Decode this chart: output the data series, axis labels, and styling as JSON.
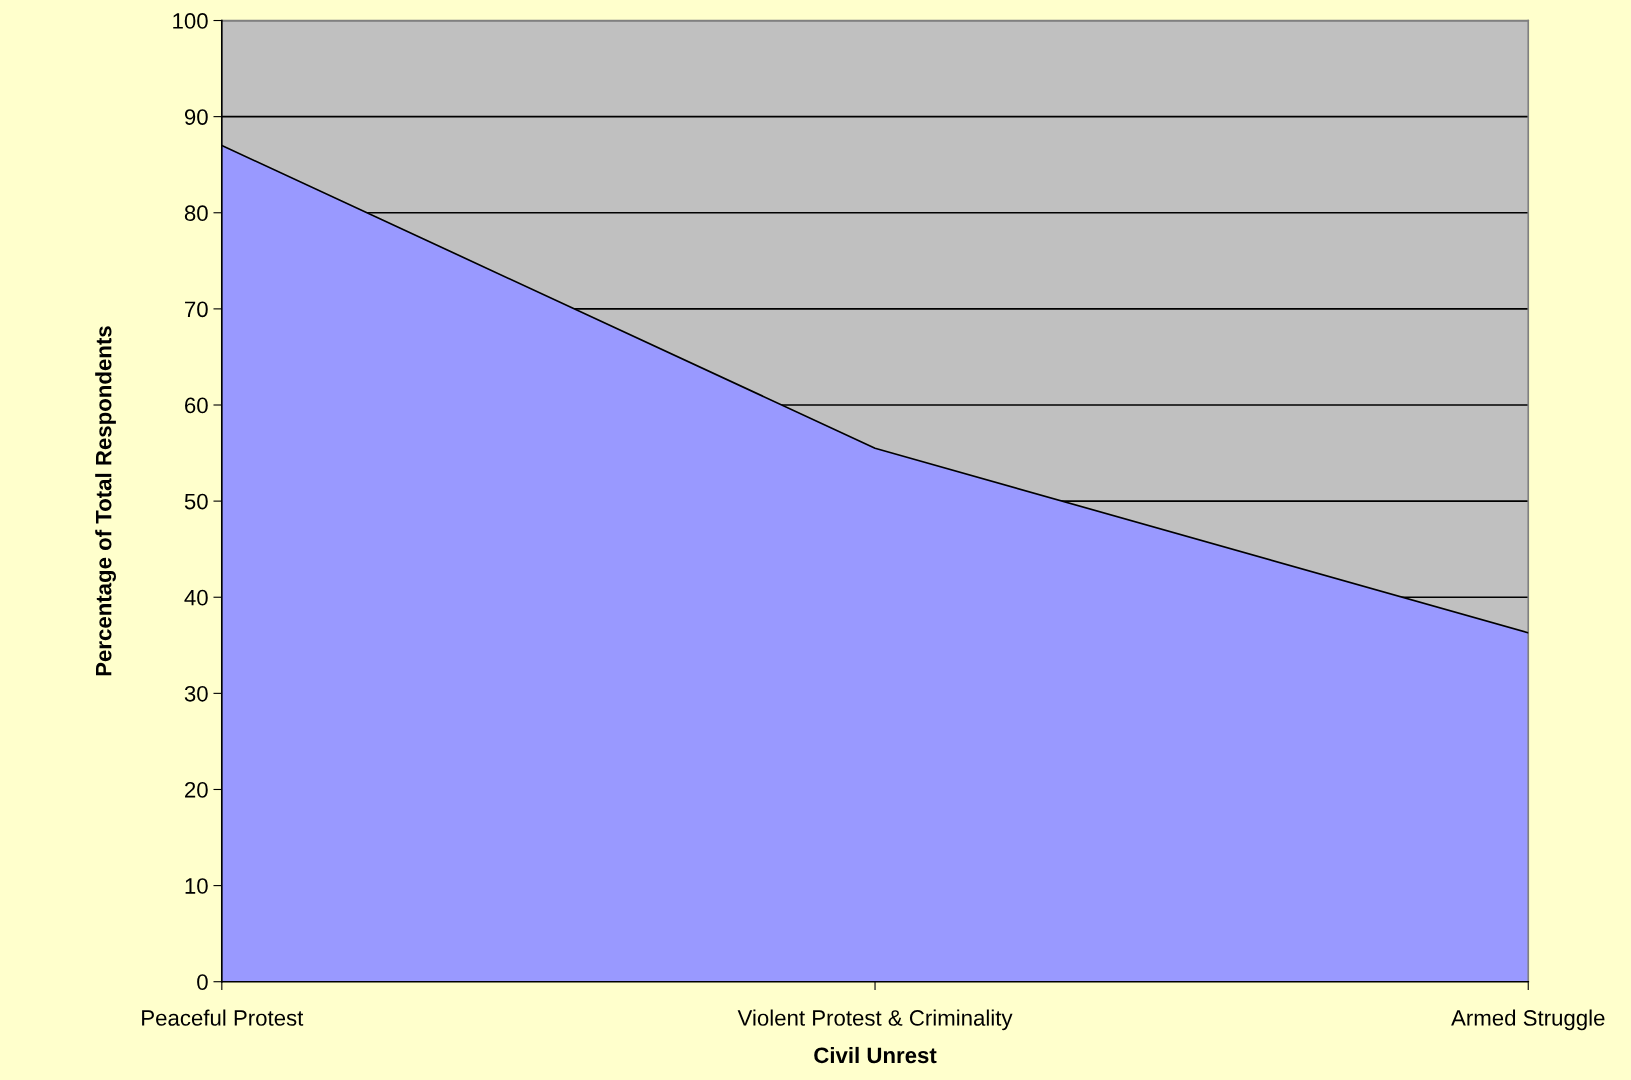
{
  "chart_data": {
    "type": "area",
    "xlabel": "Civil Unrest",
    "ylabel": "Percentage of Total Respondents",
    "categories": [
      "Peaceful Protest",
      "Violent Protest & Criminality",
      "Armed Struggle"
    ],
    "values": [
      87,
      55.5,
      36.3
    ],
    "color": "#9999ff",
    "ylim": [
      0,
      100
    ],
    "yticks": [
      0,
      10,
      20,
      30,
      40,
      50,
      60,
      70,
      80,
      90,
      100
    ],
    "grid": "y"
  }
}
